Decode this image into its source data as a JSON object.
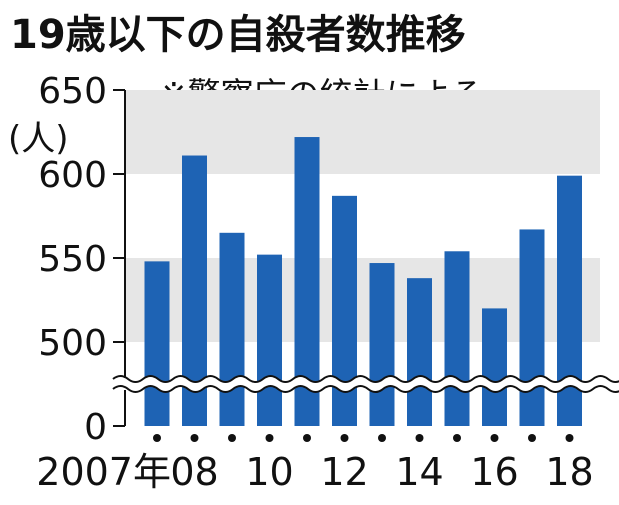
{
  "chart_data": {
    "type": "bar",
    "title": "19歳以下の自殺者数推移",
    "subtitle": "※警察庁の統計による",
    "ylabel": "(人)",
    "categories": [
      "2007",
      "2008",
      "2009",
      "2010",
      "2011",
      "2012",
      "2013",
      "2014",
      "2015",
      "2016",
      "2017",
      "2018"
    ],
    "x_tick_labels": [
      "2007年",
      "08",
      "",
      "10",
      "",
      "12",
      "",
      "14",
      "",
      "16",
      "",
      "18"
    ],
    "values": [
      548,
      611,
      565,
      552,
      622,
      587,
      547,
      538,
      554,
      520,
      567,
      599
    ],
    "y_ticks": [
      0,
      500,
      550,
      600,
      650
    ],
    "ylim": [
      0,
      650
    ],
    "axis_break": true,
    "bar_color": "#1e63b4",
    "band_color": "#e6e6e6",
    "grid": false
  }
}
